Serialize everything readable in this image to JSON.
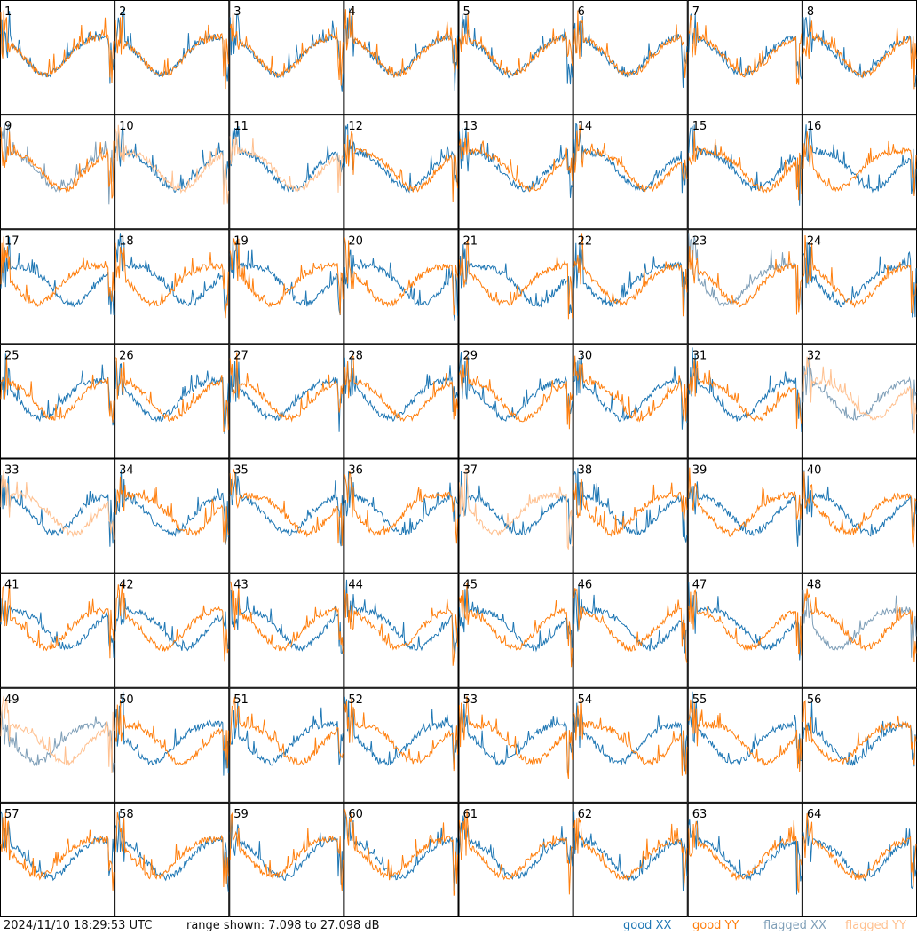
{
  "chart_data": {
    "type": "line",
    "grid_rows": 8,
    "grid_cols": 8,
    "panel_labels": [
      "1",
      "2",
      "3",
      "4",
      "5",
      "6",
      "7",
      "8",
      "9",
      "10",
      "11",
      "12",
      "13",
      "14",
      "15",
      "16",
      "17",
      "18",
      "19",
      "20",
      "21",
      "22",
      "23",
      "24",
      "25",
      "26",
      "27",
      "28",
      "29",
      "30",
      "31",
      "32",
      "33",
      "34",
      "35",
      "36",
      "37",
      "38",
      "39",
      "40",
      "41",
      "42",
      "43",
      "44",
      "45",
      "46",
      "47",
      "48",
      "49",
      "50",
      "51",
      "52",
      "53",
      "54",
      "55",
      "56",
      "57",
      "58",
      "59",
      "60",
      "61",
      "62",
      "63",
      "64"
    ],
    "y_range_db": [
      7.098,
      27.098
    ],
    "series_styles": {
      "good_xx": "#1f77b4",
      "good_yy": "#ff7f0e",
      "flagged_xx": "#7f9fb8",
      "flagged_yy": "#ffc08f"
    },
    "panel_series": {
      "xx_status": [
        "good",
        "good",
        "good",
        "good",
        "good",
        "good",
        "good",
        "good",
        "flagged",
        "good",
        "good",
        "good",
        "good",
        "good",
        "good",
        "good",
        "good",
        "good",
        "good",
        "good",
        "good",
        "good",
        "flagged",
        "good",
        "good",
        "good",
        "good",
        "good",
        "good",
        "good",
        "good",
        "flagged",
        "good",
        "good",
        "good",
        "good",
        "good",
        "good",
        "good",
        "good",
        "good",
        "good",
        "good",
        "good",
        "good",
        "good",
        "good",
        "flagged",
        "flagged",
        "good",
        "good",
        "good",
        "good",
        "good",
        "good",
        "good",
        "good",
        "good",
        "good",
        "good",
        "good",
        "good",
        "good",
        "good"
      ],
      "yy_status": [
        "good",
        "good",
        "good",
        "good",
        "good",
        "good",
        "good",
        "good",
        "good",
        "flagged",
        "flagged",
        "good",
        "good",
        "good",
        "good",
        "good",
        "good",
        "good",
        "good",
        "good",
        "good",
        "good",
        "good",
        "good",
        "good",
        "good",
        "good",
        "good",
        "good",
        "good",
        "good",
        "flagged",
        "flagged",
        "good",
        "good",
        "good",
        "flagged",
        "good",
        "good",
        "good",
        "good",
        "good",
        "good",
        "good",
        "good",
        "good",
        "good",
        "good",
        "flagged",
        "good",
        "good",
        "good",
        "good",
        "good",
        "good",
        "good",
        "good",
        "good",
        "good",
        "good",
        "good",
        "good",
        "good",
        "good"
      ]
    },
    "timestamp": "2024/11/10 18:29:53 UTC",
    "range_text": "range shown: 7.098 to 27.098 dB",
    "legend": [
      {
        "label": "good XX",
        "color": "#1f77b4"
      },
      {
        "label": "good YY",
        "color": "#ff7f0e"
      },
      {
        "label": "flagged XX",
        "color": "#7f9fb8"
      },
      {
        "label": "flagged YY",
        "color": "#ffc08f"
      }
    ]
  }
}
